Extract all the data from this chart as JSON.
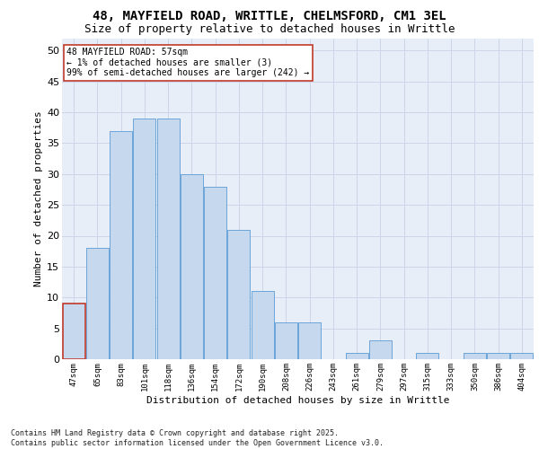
{
  "title_line1": "48, MAYFIELD ROAD, WRITTLE, CHELMSFORD, CM1 3EL",
  "title_line2": "Size of property relative to detached houses in Writtle",
  "xlabel": "Distribution of detached houses by size in Writtle",
  "ylabel": "Number of detached properties",
  "categories": [
    "47sqm",
    "65sqm",
    "83sqm",
    "101sqm",
    "118sqm",
    "136sqm",
    "154sqm",
    "172sqm",
    "190sqm",
    "208sqm",
    "226sqm",
    "243sqm",
    "261sqm",
    "279sqm",
    "297sqm",
    "315sqm",
    "333sqm",
    "350sqm",
    "386sqm",
    "404sqm"
  ],
  "values": [
    9,
    18,
    37,
    39,
    39,
    30,
    28,
    21,
    11,
    6,
    6,
    0,
    1,
    3,
    0,
    1,
    0,
    1,
    1,
    1
  ],
  "bar_color": "#c5d8ed",
  "bar_edge_color": "#5b9bd5",
  "highlight_bar_index": 0,
  "highlight_bar_edge_color": "#c0392b",
  "ylim": [
    0,
    52
  ],
  "yticks": [
    0,
    5,
    10,
    15,
    20,
    25,
    30,
    35,
    40,
    45,
    50
  ],
  "grid_color": "#ccd6e8",
  "background_color": "#e8eef8",
  "annotation_text": "48 MAYFIELD ROAD: 57sqm\n← 1% of detached houses are smaller (3)\n99% of semi-detached houses are larger (242) →",
  "annotation_box_color": "#ffffff",
  "annotation_box_edge_color": "#c0392b",
  "footnote": "Contains HM Land Registry data © Crown copyright and database right 2025.\nContains public sector information licensed under the Open Government Licence v3.0.",
  "title_fontsize": 10,
  "subtitle_fontsize": 9,
  "annotation_fontsize": 7,
  "bar_linewidth": 0.6,
  "highlight_linewidth": 1.2,
  "footnote_fontsize": 6
}
